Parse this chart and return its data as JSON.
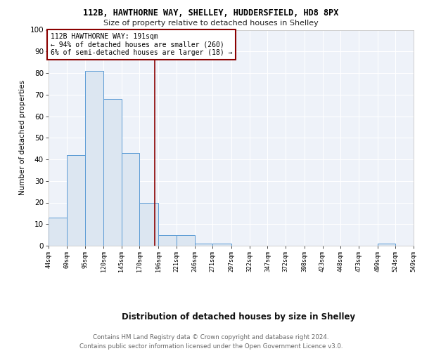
{
  "title1": "112B, HAWTHORNE WAY, SHELLEY, HUDDERSFIELD, HD8 8PX",
  "title2": "Size of property relative to detached houses in Shelley",
  "xlabel": "Distribution of detached houses by size in Shelley",
  "ylabel": "Number of detached properties",
  "footer1": "Contains HM Land Registry data © Crown copyright and database right 2024.",
  "footer2": "Contains public sector information licensed under the Open Government Licence v3.0.",
  "annotation_line1": "112B HAWTHORNE WAY: 191sqm",
  "annotation_line2": "← 94% of detached houses are smaller (260)",
  "annotation_line3": "6% of semi-detached houses are larger (18) →",
  "property_size": 191,
  "bar_edge_color": "#5b9bd5",
  "bar_face_color": "#dce6f1",
  "vline_color": "#8b0000",
  "annotation_box_color": "#8b0000",
  "background_color": "#eef2f9",
  "bin_edges": [
    44,
    69,
    95,
    120,
    145,
    170,
    196,
    221,
    246,
    271,
    297,
    322,
    347,
    372,
    398,
    423,
    448,
    473,
    499,
    524,
    549
  ],
  "bar_heights": [
    13,
    42,
    81,
    68,
    43,
    20,
    5,
    5,
    1,
    1,
    0,
    0,
    0,
    0,
    0,
    0,
    0,
    0,
    1,
    0
  ],
  "ylim": [
    0,
    100
  ],
  "xlim": [
    44,
    549
  ],
  "yticks": [
    0,
    10,
    20,
    30,
    40,
    50,
    60,
    70,
    80,
    90,
    100
  ],
  "tick_labels": [
    "44sqm",
    "69sqm",
    "95sqm",
    "120sqm",
    "145sqm",
    "170sqm",
    "196sqm",
    "221sqm",
    "246sqm",
    "271sqm",
    "297sqm",
    "322sqm",
    "347sqm",
    "372sqm",
    "398sqm",
    "423sqm",
    "448sqm",
    "473sqm",
    "499sqm",
    "524sqm",
    "549sqm"
  ]
}
